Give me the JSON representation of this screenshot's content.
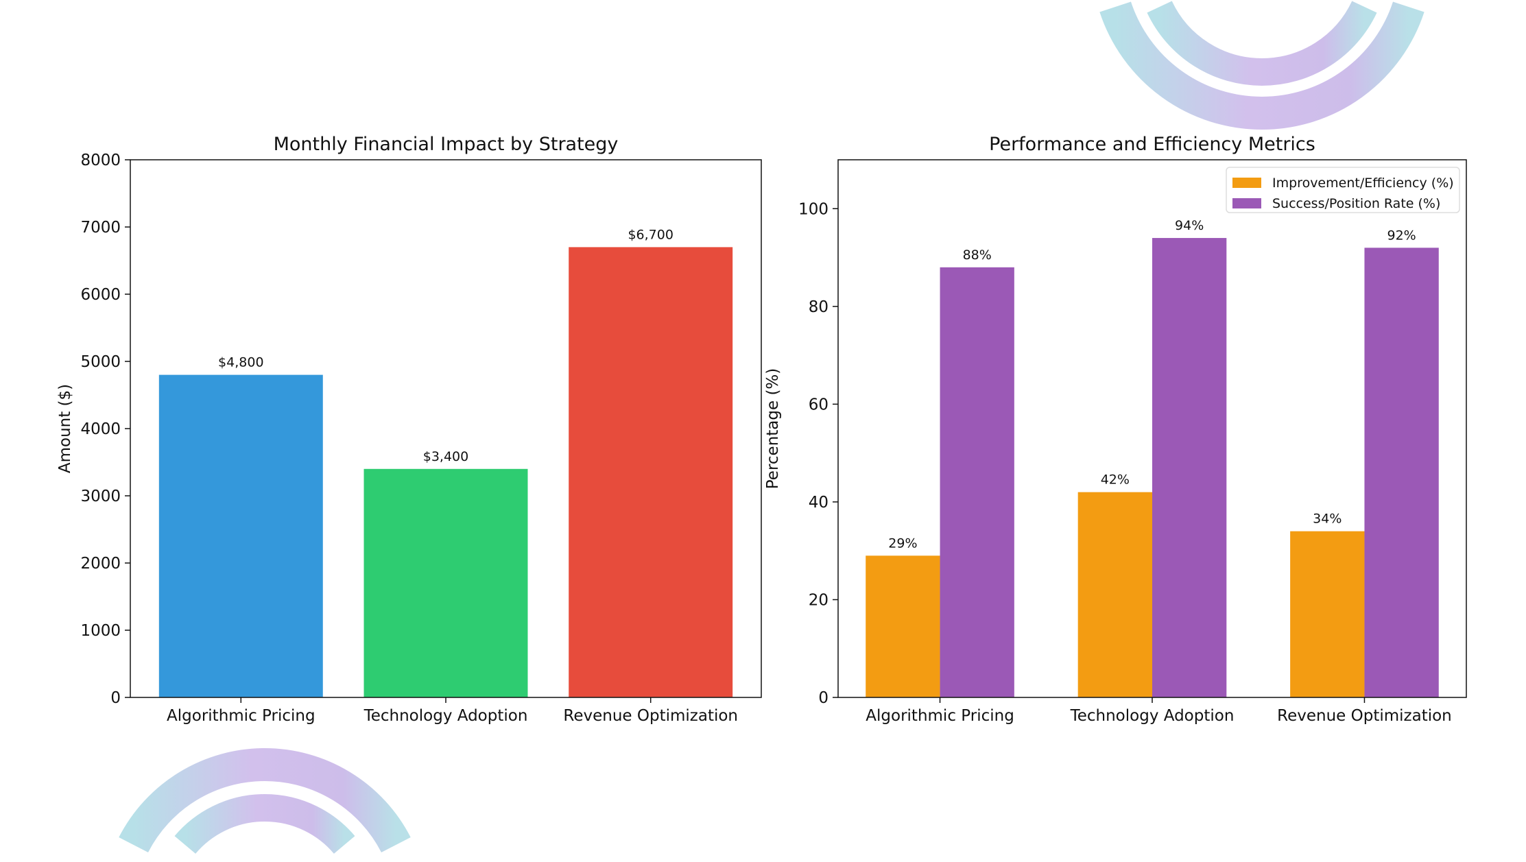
{
  "chart_data": [
    {
      "type": "bar",
      "title": "Monthly Financial Impact by Strategy",
      "xlabel": "",
      "ylabel": "Amount ($)",
      "categories": [
        "Algorithmic Pricing",
        "Technology Adoption",
        "Revenue Optimization"
      ],
      "values": [
        4800,
        3400,
        6700
      ],
      "data_labels": [
        "$4,800",
        "$3,400",
        "$6,700"
      ],
      "colors": [
        "#3498db",
        "#2ecc71",
        "#e74c3c"
      ],
      "ylim": [
        0,
        8000
      ],
      "yticks": [
        0,
        1000,
        2000,
        3000,
        4000,
        5000,
        6000,
        7000,
        8000
      ],
      "grid": false
    },
    {
      "type": "bar",
      "title": "Performance and Efficiency Metrics",
      "xlabel": "",
      "ylabel": "Percentage (%)",
      "categories": [
        "Algorithmic Pricing",
        "Technology Adoption",
        "Revenue Optimization"
      ],
      "series": [
        {
          "name": "Improvement/Efficiency (%)",
          "values": [
            29,
            42,
            34
          ],
          "data_labels": [
            "29%",
            "42%",
            "34%"
          ],
          "color": "#f39c12"
        },
        {
          "name": "Success/Position Rate (%)",
          "values": [
            88,
            94,
            92
          ],
          "data_labels": [
            "88%",
            "94%",
            "92%"
          ],
          "color": "#9b59b6"
        }
      ],
      "ylim": [
        0,
        110
      ],
      "yticks": [
        0,
        20,
        40,
        60,
        80,
        100
      ],
      "legend": "top-right",
      "grid": false
    }
  ]
}
